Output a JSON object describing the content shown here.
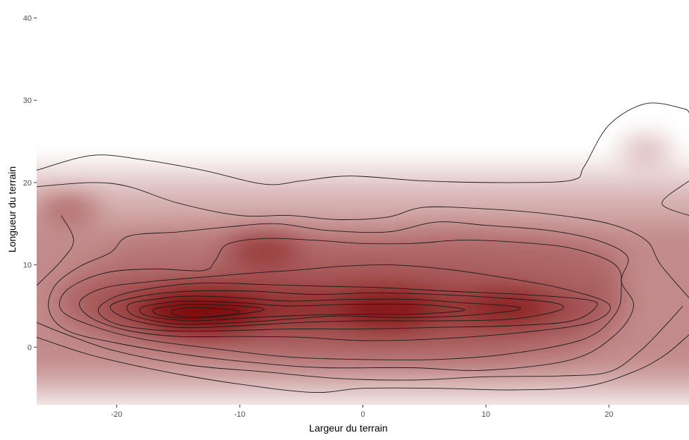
{
  "chart_data": {
    "type": "heatmap",
    "subtype": "2d-density",
    "title": "",
    "xlabel": "Largeur du terrain",
    "ylabel": "Longueur du terrain",
    "xlim": [
      -26.5,
      26.5
    ],
    "ylim": [
      -7,
      41.5
    ],
    "x_ticks": [
      -20,
      -10,
      0,
      10,
      20
    ],
    "y_ticks": [
      0,
      10,
      20,
      30,
      40
    ],
    "grid": false,
    "legend": "none",
    "colors": {
      "low": "#ffffff",
      "high": "#7a0000",
      "contour": "#1a1a1a"
    },
    "density_peaks": [
      {
        "x": -13,
        "y": 4.2,
        "strength": 1.0
      },
      {
        "x": 2,
        "y": 4.6,
        "strength": 0.72
      },
      {
        "x": 12,
        "y": 4.8,
        "strength": 0.5
      },
      {
        "x": -8,
        "y": 12,
        "strength": 0.42
      },
      {
        "x": -24,
        "y": 17,
        "strength": 0.3
      },
      {
        "x": 23,
        "y": 24,
        "strength": 0.14
      }
    ],
    "contours": [
      {
        "level": 1,
        "points": [
          [
            -26.5,
            1.2
          ],
          [
            -22,
            -1
          ],
          [
            -16,
            -3
          ],
          [
            -10,
            -4.5
          ],
          [
            -4,
            -5.5
          ],
          [
            0,
            -5
          ],
          [
            6,
            -5
          ],
          [
            12,
            -5.2
          ],
          [
            18,
            -4.8
          ],
          [
            22,
            -3
          ],
          [
            24.5,
            -1
          ],
          [
            26.5,
            1.5
          ]
        ]
      },
      {
        "level": 1,
        "points": [
          [
            -26.5,
            21.5
          ],
          [
            -22,
            23.3
          ],
          [
            -18,
            22.8
          ],
          [
            -13,
            21.5
          ],
          [
            -8,
            19.8
          ],
          [
            -5,
            20.2
          ],
          [
            -1,
            20.8
          ],
          [
            5,
            20.2
          ],
          [
            12,
            20
          ],
          [
            17,
            20.3
          ],
          [
            18,
            22
          ],
          [
            20,
            27
          ],
          [
            23,
            29.6
          ],
          [
            26,
            29
          ],
          [
            26.5,
            28.5
          ]
        ]
      },
      {
        "level": 1,
        "points": [
          [
            26.5,
            20.2
          ],
          [
            24.3,
            17.5
          ],
          [
            26.5,
            16
          ]
        ]
      },
      {
        "level": 2,
        "points": [
          [
            -26.5,
            7.5
          ],
          [
            -24.5,
            10.5
          ],
          [
            -23.5,
            13
          ],
          [
            -24.5,
            16
          ]
        ]
      },
      {
        "level": 2,
        "points": [
          [
            -26.5,
            19.5
          ],
          [
            -22,
            20
          ],
          [
            -19,
            19.5
          ],
          [
            -15,
            17.5
          ],
          [
            -10,
            16
          ],
          [
            -6,
            16
          ],
          [
            -2,
            15.5
          ],
          [
            2,
            15.8
          ],
          [
            5,
            17
          ],
          [
            10,
            16.8
          ],
          [
            15,
            16.2
          ],
          [
            20,
            15
          ],
          [
            23,
            13
          ],
          [
            24.2,
            10
          ],
          [
            26.5,
            6
          ]
        ]
      },
      {
        "level": 2,
        "points": [
          [
            -26.5,
            3
          ],
          [
            -24,
            1.5
          ],
          [
            -20,
            -0.5
          ],
          [
            -14,
            -2.2
          ],
          [
            -8,
            -3
          ],
          [
            -2,
            -3.8
          ],
          [
            4,
            -4
          ],
          [
            10,
            -3.6
          ],
          [
            16,
            -3.5
          ],
          [
            20,
            -3
          ],
          [
            22.5,
            -0.5
          ],
          [
            24.5,
            2.5
          ],
          [
            26,
            5
          ]
        ]
      },
      {
        "level": 3,
        "points": [
          [
            -20.5,
            11.5
          ],
          [
            -19,
            13.5
          ],
          [
            -15,
            14
          ],
          [
            -11,
            14.6
          ],
          [
            -7,
            15
          ],
          [
            -3,
            14.2
          ],
          [
            2,
            14
          ],
          [
            6,
            15.2
          ],
          [
            10,
            14.8
          ],
          [
            15,
            14.2
          ],
          [
            19,
            13
          ],
          [
            21.5,
            11
          ],
          [
            21,
            8
          ],
          [
            22,
            5
          ],
          [
            20.5,
            1.5
          ],
          [
            17,
            -1.5
          ],
          [
            10,
            -2.8
          ],
          [
            4,
            -2.5
          ],
          [
            -3,
            -2.5
          ],
          [
            -8,
            -2
          ],
          [
            -14,
            -1
          ],
          [
            -20,
            0.5
          ],
          [
            -24,
            2
          ],
          [
            -25.5,
            4.5
          ],
          [
            -25,
            7.5
          ],
          [
            -23,
            9.8
          ],
          [
            -20.5,
            11.5
          ]
        ]
      },
      {
        "level": 4,
        "points": [
          [
            -11,
            12.5
          ],
          [
            -8,
            13.2
          ],
          [
            -4,
            13
          ],
          [
            0,
            12.6
          ],
          [
            4,
            12.6
          ],
          [
            8,
            13
          ],
          [
            12,
            12.8
          ],
          [
            17,
            12
          ],
          [
            20.5,
            10
          ],
          [
            21,
            7
          ],
          [
            20.5,
            4
          ],
          [
            18,
            1
          ],
          [
            12,
            -0.8
          ],
          [
            6,
            -1.5
          ],
          [
            0,
            -1.5
          ],
          [
            -6,
            -1.2
          ],
          [
            -12,
            -0.2
          ],
          [
            -18,
            1
          ],
          [
            -22,
            2.6
          ],
          [
            -24.5,
            4.5
          ],
          [
            -24,
            7
          ],
          [
            -21,
            9
          ],
          [
            -17,
            9.5
          ],
          [
            -13,
            9.3
          ],
          [
            -12,
            10.5
          ],
          [
            -11,
            12.5
          ]
        ]
      },
      {
        "level": 5,
        "points": [
          [
            -9,
            9
          ],
          [
            -5,
            9.4
          ],
          [
            -2,
            9.8
          ],
          [
            2,
            10
          ],
          [
            6,
            9.6
          ],
          [
            10,
            8.8
          ],
          [
            16,
            7.2
          ],
          [
            20,
            5.2
          ],
          [
            18.5,
            3
          ],
          [
            13,
            1.8
          ],
          [
            6,
            1
          ],
          [
            0,
            0.8
          ],
          [
            -5,
            1.2
          ],
          [
            -10,
            1.3
          ],
          [
            -15,
            1.3
          ],
          [
            -19,
            2
          ],
          [
            -22,
            3.5
          ],
          [
            -23,
            5.5
          ],
          [
            -21,
            7.2
          ],
          [
            -17,
            8
          ],
          [
            -13,
            8.5
          ],
          [
            -9,
            9
          ]
        ]
      },
      {
        "level": 6,
        "points": [
          [
            -13,
            7.8
          ],
          [
            -8,
            7.6
          ],
          [
            -3,
            7.4
          ],
          [
            2,
            7.2
          ],
          [
            7,
            6.8
          ],
          [
            13,
            6.4
          ],
          [
            18,
            5.8
          ],
          [
            19,
            5
          ],
          [
            17,
            3.2
          ],
          [
            12,
            2.6
          ],
          [
            6,
            2.4
          ],
          [
            0,
            2.2
          ],
          [
            -6,
            2.2
          ],
          [
            -11,
            2
          ],
          [
            -16,
            2
          ],
          [
            -20,
            2.8
          ],
          [
            -21.5,
            4.5
          ],
          [
            -20,
            6.2
          ],
          [
            -17,
            7.2
          ],
          [
            -13,
            7.8
          ]
        ]
      },
      {
        "level": 7,
        "points": [
          [
            -14,
            6.8
          ],
          [
            -9,
            6.8
          ],
          [
            -4,
            6.4
          ],
          [
            1,
            6.6
          ],
          [
            6,
            6.4
          ],
          [
            11,
            6
          ],
          [
            15.5,
            5.4
          ],
          [
            16,
            4.5
          ],
          [
            12,
            3.4
          ],
          [
            6,
            3.2
          ],
          [
            0,
            3.2
          ],
          [
            -5,
            3
          ],
          [
            -10,
            2.6
          ],
          [
            -15,
            2.4
          ],
          [
            -19,
            3.4
          ],
          [
            -20.5,
            5
          ],
          [
            -18,
            6.2
          ],
          [
            -14,
            6.8
          ]
        ]
      },
      {
        "level": 8,
        "points": [
          [
            -14,
            6.2
          ],
          [
            -10,
            6
          ],
          [
            -6,
            5.6
          ],
          [
            -1,
            5.8
          ],
          [
            4,
            5.8
          ],
          [
            8,
            5.4
          ],
          [
            12,
            5
          ],
          [
            12.5,
            4.5
          ],
          [
            8,
            3.8
          ],
          [
            3,
            3.6
          ],
          [
            -2,
            3.8
          ],
          [
            -6,
            3.4
          ],
          [
            -10,
            3
          ],
          [
            -15,
            2.8
          ],
          [
            -18.5,
            3.8
          ],
          [
            -19,
            5.2
          ],
          [
            -16.5,
            5.9
          ],
          [
            -14,
            6.2
          ]
        ]
      },
      {
        "level": 9,
        "points": [
          [
            -14,
            5.6
          ],
          [
            -10,
            5.4
          ],
          [
            -6,
            5
          ],
          [
            -1,
            5.2
          ],
          [
            4,
            5.2
          ],
          [
            7.5,
            4.8
          ],
          [
            8,
            4.4
          ],
          [
            4,
            4
          ],
          [
            -1,
            4
          ],
          [
            -6,
            3.8
          ],
          [
            -10,
            3.5
          ],
          [
            -14,
            3.2
          ],
          [
            -17.5,
            3.8
          ],
          [
            -18,
            4.8
          ],
          [
            -16,
            5.4
          ],
          [
            -14,
            5.6
          ]
        ]
      },
      {
        "level": 10,
        "points": [
          [
            -14,
            5.2
          ],
          [
            -10,
            5
          ],
          [
            -8,
            4.6
          ],
          [
            -10,
            4
          ],
          [
            -14,
            3.5
          ],
          [
            -16.5,
            3.9
          ],
          [
            -17,
            4.6
          ],
          [
            -15.5,
            5
          ],
          [
            -14,
            5.2
          ]
        ]
      },
      {
        "level": 11,
        "points": [
          [
            -14,
            4.8
          ],
          [
            -11,
            4.6
          ],
          [
            -10,
            4.2
          ],
          [
            -12.5,
            3.7
          ],
          [
            -15,
            3.8
          ],
          [
            -15.5,
            4.4
          ],
          [
            -14,
            4.8
          ]
        ]
      }
    ]
  }
}
